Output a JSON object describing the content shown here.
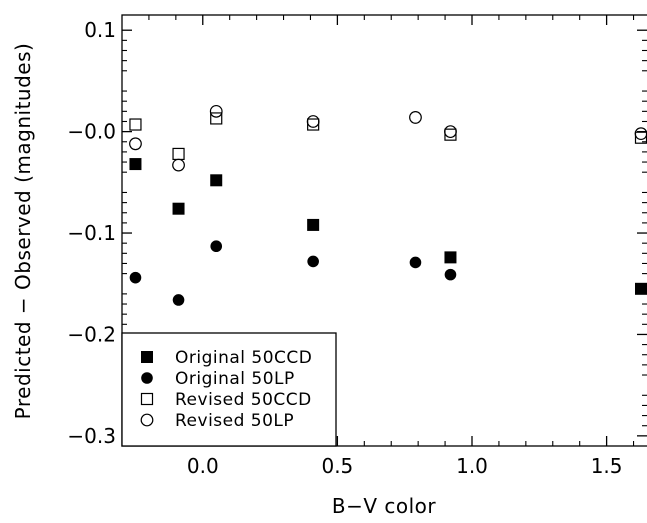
{
  "chart_data": {
    "type": "scatter",
    "title": "",
    "xlabel": "B−V color",
    "ylabel": "Predicted − Observed (magnitudes)",
    "xlim": [
      -0.3,
      1.65
    ],
    "ylim": [
      -0.31,
      0.115
    ],
    "xticks": [
      0.0,
      0.5,
      1.0,
      1.5
    ],
    "xtick_labels": [
      "0.0",
      "0.5",
      "1.0",
      "1.5"
    ],
    "yticks": [
      0.1,
      0.0,
      -0.1,
      -0.2,
      -0.3
    ],
    "ytick_labels": [
      "0.1",
      "−0.0",
      "−0.1",
      "−0.2",
      "−0.3"
    ],
    "grid": false,
    "legend_position": "bottom-left",
    "series": [
      {
        "name": "Original 50CCD",
        "marker": "filled-square",
        "points": [
          {
            "x": -0.25,
            "y": -0.032
          },
          {
            "x": -0.09,
            "y": -0.076
          },
          {
            "x": 0.05,
            "y": -0.048
          },
          {
            "x": 0.41,
            "y": -0.092
          },
          {
            "x": 0.92,
            "y": -0.124
          },
          {
            "x": 1.64,
            "y": -0.155
          }
        ]
      },
      {
        "name": "Original 50LP",
        "marker": "filled-circle",
        "points": [
          {
            "x": -0.25,
            "y": -0.144
          },
          {
            "x": -0.09,
            "y": -0.166
          },
          {
            "x": 0.05,
            "y": -0.113
          },
          {
            "x": 0.41,
            "y": -0.128
          },
          {
            "x": 0.79,
            "y": -0.129
          },
          {
            "x": 0.92,
            "y": -0.141
          }
        ]
      },
      {
        "name": "Revised 50CCD",
        "marker": "open-square",
        "points": [
          {
            "x": -0.25,
            "y": 0.007
          },
          {
            "x": -0.09,
            "y": -0.022
          },
          {
            "x": 0.05,
            "y": 0.013
          },
          {
            "x": 0.41,
            "y": 0.007
          },
          {
            "x": 0.92,
            "y": -0.003
          },
          {
            "x": 1.64,
            "y": -0.006
          }
        ]
      },
      {
        "name": "Revised 50LP",
        "marker": "open-circle",
        "points": [
          {
            "x": -0.25,
            "y": -0.012
          },
          {
            "x": -0.09,
            "y": -0.033
          },
          {
            "x": 0.05,
            "y": 0.02
          },
          {
            "x": 0.41,
            "y": 0.01
          },
          {
            "x": 0.79,
            "y": 0.014
          },
          {
            "x": 0.92,
            "y": 0.0
          },
          {
            "x": 1.64,
            "y": -0.002
          }
        ]
      }
    ]
  }
}
